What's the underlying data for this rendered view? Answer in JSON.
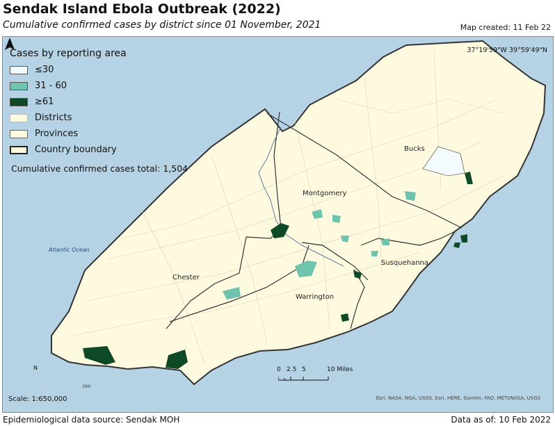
{
  "header": {
    "title": "Sendak Island Ebola Outbreak (2022)",
    "subtitle": "Cumulative confirmed cases by district since 01 November, 2021",
    "map_created": "Map created: 11 Feb 22"
  },
  "map": {
    "coordinates": "37°19'59\"W 39°59'49\"N",
    "ocean_label": "Atlantic Ocean",
    "latitude_label": "39N",
    "province_labels": [
      "Bucks",
      "Montgomery",
      "Susquehanna",
      "Chester",
      "Warrington"
    ],
    "north_label": "N",
    "scale_text": "Scale: 1:650,000",
    "scale_ticks": [
      "0",
      "2.5",
      "5",
      "10 Miles"
    ],
    "credits": "Esri, NASA, NGA, USGS, Esri, HERE, Garmin, FAO, METI/NASA, USGS"
  },
  "legend": {
    "title": "Cases by reporting area",
    "items": [
      {
        "label": "≤30",
        "color": "#f4fbff"
      },
      {
        "label": "31 - 60",
        "color": "#6ec4ad"
      },
      {
        "label": "≥61",
        "color": "#0f4a27"
      },
      {
        "label": "Districts",
        "color": "#fefae0"
      },
      {
        "label": "Provinces",
        "color": "#fefae0"
      },
      {
        "label": "Country boundary",
        "color": "#fefae0"
      }
    ],
    "total": "Cumulative confirmed cases total: 1,504"
  },
  "footer": {
    "source": "Epidemiological data source: Sendak MOH",
    "data_as_of": "Data as of: 10 Feb 2022"
  },
  "colors": {
    "water": "#b5d3e4",
    "land": "#fefae0",
    "low": "#f4fbff",
    "mid": "#6ec4ad",
    "high": "#0f4a27"
  }
}
